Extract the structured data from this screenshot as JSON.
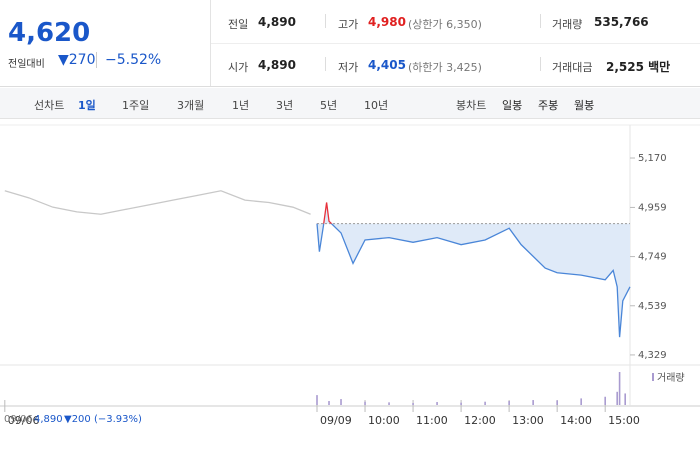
{
  "header": {
    "price": "4,620",
    "change_label": "전일대비",
    "change": "▼270",
    "rate": "−5.52%"
  },
  "stats": [
    {
      "label": "전일",
      "value": "4,890"
    },
    {
      "label": "고가",
      "value": "4,980",
      "note": "(상한가 6,350)"
    },
    {
      "label": "거래량",
      "value": "535,766"
    },
    {
      "label": "시가",
      "value": "4,890"
    },
    {
      "label": "저가",
      "value": "4,405",
      "note": "(하한가 3,425)"
    },
    {
      "label": "거래대금",
      "value": "2,525 백만"
    }
  ],
  "tabs": {
    "line_label": "선차트",
    "line": [
      "1일",
      "1주일",
      "3개월",
      "1년",
      "3년",
      "5년",
      "10년"
    ],
    "candle_label": "봉차트",
    "candle": [
      "일봉",
      "주봉",
      "월봉"
    ]
  },
  "footer": {
    "date": "09/06",
    "price": "4,890",
    "change": "▼200 (−3.93%)"
  },
  "chart_data": {
    "type": "line",
    "series": [
      {
        "name": "09/06",
        "color": "#c8c8c8",
        "x": [
          -390,
          -360,
          -330,
          -300,
          -270,
          -240,
          -210,
          -180,
          -150,
          -120,
          -90,
          -60,
          -30,
          -8
        ],
        "values": [
          5030,
          5000,
          4960,
          4940,
          4930,
          4950,
          4970,
          4990,
          5010,
          5030,
          4990,
          4980,
          4960,
          4930
        ]
      },
      {
        "name": "09/09",
        "color": "#4a86d8",
        "up_color": "#e8303a",
        "area_color": "#dfeaf8",
        "x": [
          0,
          3,
          8,
          12,
          15,
          30,
          45,
          60,
          90,
          120,
          150,
          180,
          210,
          240,
          255,
          285,
          300,
          330,
          360,
          370,
          375,
          378,
          382,
          391
        ],
        "values": [
          4890,
          4770,
          4880,
          4980,
          4900,
          4850,
          4720,
          4820,
          4830,
          4810,
          4830,
          4800,
          4820,
          4870,
          4800,
          4700,
          4680,
          4670,
          4650,
          4690,
          4620,
          4405,
          4560,
          4620
        ]
      }
    ],
    "reference_line": 4890,
    "volume": {
      "name": "거래량",
      "color": "#a99bd0",
      "x": [
        0,
        15,
        30,
        60,
        90,
        120,
        150,
        180,
        210,
        240,
        270,
        300,
        330,
        360,
        375,
        378,
        385
      ],
      "values": [
        30,
        12,
        18,
        10,
        8,
        6,
        9,
        7,
        10,
        12,
        15,
        14,
        20,
        25,
        40,
        100,
        35
      ],
      "ylim": [
        0,
        100
      ]
    },
    "xlim": [
      -396,
      391
    ],
    "xticks": [
      {
        "value": -390,
        "label": "09/06"
      },
      {
        "value": 0,
        "label": "09/09"
      },
      {
        "value": 60,
        "label": "10:00"
      },
      {
        "value": 120,
        "label": "11:00"
      },
      {
        "value": 180,
        "label": "12:00"
      },
      {
        "value": 240,
        "label": "13:00"
      },
      {
        "value": 300,
        "label": "14:00"
      },
      {
        "value": 360,
        "label": "15:00"
      }
    ],
    "ylim": [
      4286,
      5311
    ],
    "yticks": [
      {
        "value": 4329,
        "label": "4,329"
      },
      {
        "value": 4539,
        "label": "4,539"
      },
      {
        "value": 4749,
        "label": "4,749"
      },
      {
        "value": 4959,
        "label": "4,959"
      },
      {
        "value": 5170,
        "label": "5,170"
      }
    ]
  }
}
